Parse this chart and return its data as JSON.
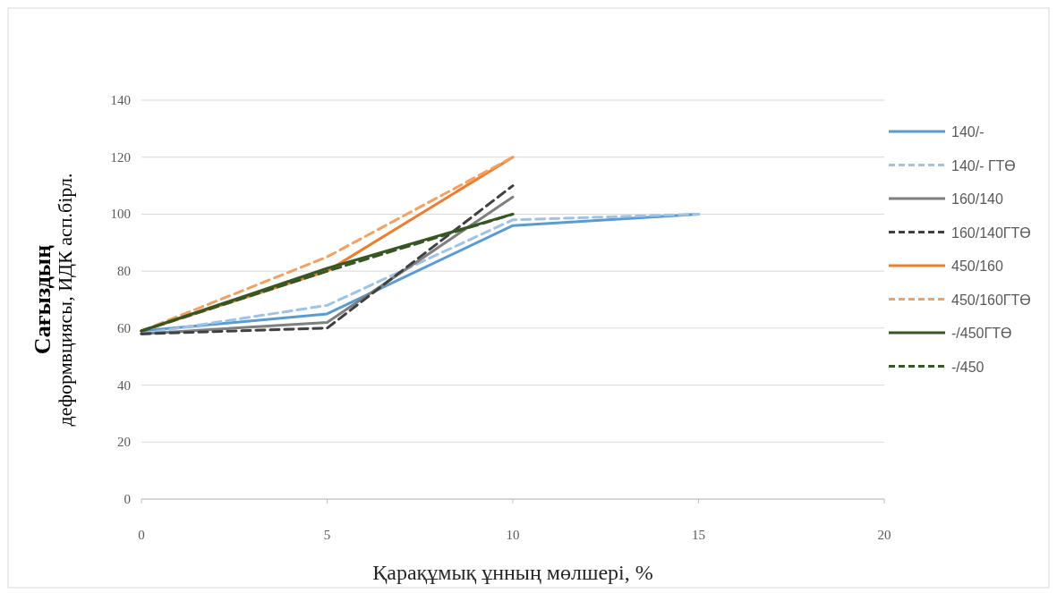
{
  "chart_data": {
    "type": "line",
    "xlabel": "Қарақұмық ұнның мөлшері, %",
    "ylabel": "Сағыздың\nдеформвциясы, ИДК асп.бірл.",
    "x": [
      0,
      5,
      10,
      15
    ],
    "xlim": [
      0,
      20
    ],
    "xticks": [
      0,
      5,
      10,
      15,
      20
    ],
    "ylim": [
      0,
      140
    ],
    "yticks": [
      0,
      20,
      40,
      60,
      80,
      100,
      120,
      140
    ],
    "grid": "y",
    "legend": "right",
    "marker": "none",
    "series": [
      {
        "name": "140/-",
        "color": "#5b9bd5",
        "line_style": "solid",
        "values": [
          59,
          65,
          96,
          100
        ]
      },
      {
        "name": "140/- ГТӨ",
        "color": "#9dc3e6",
        "line_style": "dashed",
        "values": [
          58,
          68,
          98,
          100
        ]
      },
      {
        "name": "160/140",
        "color": "#7f7f7f",
        "line_style": "solid",
        "values": [
          58,
          62,
          106,
          null
        ]
      },
      {
        "name": "160/140ГТӨ",
        "color": "#404040",
        "line_style": "dashed",
        "values": [
          58,
          60,
          110,
          null
        ]
      },
      {
        "name": "450/160",
        "color": "#ed7d31",
        "line_style": "solid",
        "values": [
          59,
          80,
          120,
          null
        ]
      },
      {
        "name": "450/160ГТӨ",
        "color": "#f4a060",
        "line_style": "dashed",
        "values": [
          59,
          85,
          120,
          null
        ]
      },
      {
        "name": "-/450ГТӨ",
        "color": "#375623",
        "line_style": "solid",
        "values": [
          59,
          81,
          100,
          null
        ]
      },
      {
        "name": "-/450",
        "color": "#375623",
        "line_style": "dashed",
        "values": [
          59,
          80,
          100,
          null
        ]
      }
    ]
  }
}
